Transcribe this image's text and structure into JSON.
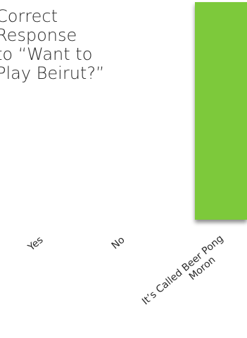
{
  "chart_data": {
    "type": "bar",
    "title_lines": [
      "Correct",
      "Response",
      "to “Want to",
      "Play Beirut?”"
    ],
    "categories": [
      "Yes",
      "No",
      "It’s Called Beer Pong Moron"
    ],
    "values": [
      0,
      0,
      100
    ],
    "ylim": [
      0,
      100
    ],
    "grid": false,
    "legend": "none",
    "colors": {
      "bar": "#7dc93b",
      "text": "#2a2a2a"
    }
  }
}
